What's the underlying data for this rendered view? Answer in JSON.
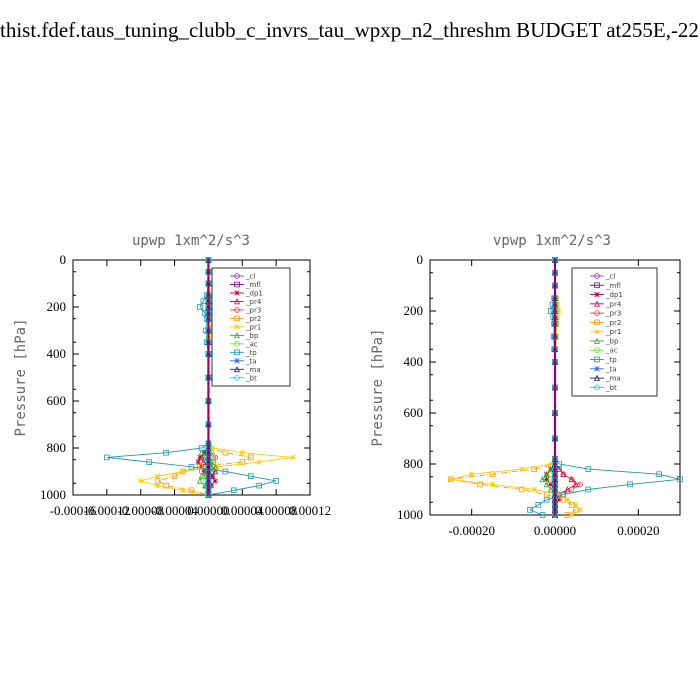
{
  "page": {
    "title": "thist.fdef.taus_tuning_clubb_c_invrs_tau_wpxp_n2_threshm  BUDGET at255E,-22"
  },
  "legend_entries": [
    {
      "name": "_cl",
      "color": "#9933cc"
    },
    {
      "name": "_mfl",
      "color": "#800080"
    },
    {
      "name": "_dp1",
      "color": "#b8003a"
    },
    {
      "name": "_pr4",
      "color": "#cc0044"
    },
    {
      "name": "_pr3",
      "color": "#ff3333"
    },
    {
      "name": "_pr2",
      "color": "#ff9900"
    },
    {
      "name": "_pr1",
      "color": "#ffcc00"
    },
    {
      "name": "_bp",
      "color": "#33aa33"
    },
    {
      "name": "_ac",
      "color": "#66ee22"
    },
    {
      "name": "_tp",
      "color": "#2299aa"
    },
    {
      "name": "_ta",
      "color": "#3366dd"
    },
    {
      "name": "_ma",
      "color": "#222266"
    },
    {
      "name": "_bt",
      "color": "#00dddd"
    }
  ],
  "chart_data": [
    {
      "type": "line",
      "title": "upwp   1xm^2/s^3",
      "ylabel": "Pressure [hPa]",
      "xlabel": "",
      "xlim": [
        -0.00016,
        0.00012
      ],
      "ylim": [
        1000,
        0
      ],
      "xticks": [
        "-0.00016",
        "-0.00012",
        "-0.00008",
        "-0.00004",
        "0.00000",
        "0.00004",
        "0.00008",
        "0.00012"
      ],
      "yticks": [
        "0",
        "200",
        "400",
        "600",
        "800",
        "1000"
      ],
      "legend_position": "top-right",
      "pressure_levels": [
        0,
        50,
        100,
        150,
        175,
        200,
        225,
        250,
        300,
        350,
        400,
        500,
        600,
        700,
        780,
        800,
        820,
        840,
        860,
        880,
        900,
        920,
        940,
        960,
        980,
        1000
      ],
      "series": [
        {
          "name": "_cl",
          "values": [
            0,
            0,
            0,
            0,
            0,
            0,
            0,
            0,
            0,
            0,
            0,
            0,
            0,
            0,
            0,
            0,
            0,
            0,
            0,
            0,
            0,
            0,
            0,
            0,
            0,
            0
          ]
        },
        {
          "name": "_mfl",
          "values": [
            0,
            0,
            0,
            0,
            0,
            0,
            0,
            0,
            0,
            0,
            0,
            0,
            0,
            0,
            0,
            0,
            0,
            0,
            0,
            0,
            0,
            0,
            0,
            0,
            0,
            0
          ]
        },
        {
          "name": "_dp1",
          "values": [
            0,
            0,
            0,
            0,
            0,
            0,
            0,
            0,
            0,
            0,
            0,
            0,
            0,
            0,
            0,
            0,
            -5e-06,
            -1e-05,
            -1.2e-05,
            -8e-06,
            -5e-06,
            5e-06,
            8e-06,
            3e-06,
            0,
            0
          ]
        },
        {
          "name": "_pr4",
          "values": [
            0,
            0,
            0,
            0,
            0,
            0,
            0,
            0,
            0,
            0,
            0,
            0,
            0,
            0,
            0,
            0,
            -4e-06,
            -8e-06,
            -6e-06,
            4e-06,
            8e-06,
            4e-06,
            0,
            -3e-06,
            0,
            0
          ]
        },
        {
          "name": "_pr3",
          "values": [
            0,
            0,
            0,
            0,
            0,
            0,
            0,
            0,
            0,
            0,
            0,
            0,
            0,
            0,
            0,
            0,
            4e-06,
            8e-06,
            6e-06,
            -4e-06,
            -8e-06,
            -4e-06,
            0,
            3e-06,
            0,
            0
          ]
        },
        {
          "name": "_pr2",
          "values": [
            0,
            0,
            0,
            2e-06,
            4e-06,
            6e-06,
            4e-06,
            3e-06,
            2e-06,
            1e-06,
            0,
            0,
            0,
            0,
            0,
            0,
            2e-05,
            5e-05,
            4e-05,
            -1e-05,
            -3e-05,
            -4e-05,
            -6e-05,
            -5e-05,
            -2e-05,
            0
          ]
        },
        {
          "name": "_pr1",
          "values": [
            0,
            0,
            0,
            3e-06,
            5e-06,
            8e-06,
            5e-06,
            4e-06,
            3e-06,
            2e-06,
            0,
            0,
            0,
            0,
            0,
            5e-06,
            4e-05,
            0.0001,
            6e-05,
            1e-05,
            -3e-05,
            -6e-05,
            -8e-05,
            -6e-05,
            -3e-05,
            0
          ]
        },
        {
          "name": "_bp",
          "values": [
            0,
            0,
            0,
            0,
            0,
            0,
            0,
            0,
            0,
            0,
            0,
            0,
            0,
            0,
            0,
            0,
            -8e-06,
            -6e-06,
            3e-06,
            8e-06,
            4e-06,
            -8e-06,
            -1e-05,
            -4e-06,
            0,
            0
          ]
        },
        {
          "name": "_ac",
          "values": [
            0,
            0,
            0,
            0,
            0,
            0,
            0,
            0,
            0,
            0,
            0,
            0,
            0,
            0,
            0,
            0,
            4e-06,
            6e-06,
            4e-06,
            2e-06,
            0,
            -4e-06,
            -6e-06,
            -2e-06,
            0,
            0
          ]
        },
        {
          "name": "_tp",
          "values": [
            0,
            0,
            0,
            -2e-06,
            -6e-06,
            -1e-05,
            -4e-06,
            -2e-06,
            -3e-06,
            -2e-06,
            0,
            0,
            0,
            0,
            0,
            -8e-06,
            -5e-05,
            -0.00012,
            -7e-05,
            -2e-05,
            2e-05,
            5e-05,
            8e-05,
            6e-05,
            3e-05,
            0
          ]
        },
        {
          "name": "_ta",
          "values": [
            0,
            0,
            0,
            0,
            0,
            0,
            0,
            0,
            0,
            0,
            0,
            0,
            0,
            0,
            0,
            0,
            0,
            0,
            0,
            0,
            0,
            0,
            0,
            0,
            0,
            0
          ]
        },
        {
          "name": "_ma",
          "values": [
            0,
            0,
            0,
            0,
            0,
            0,
            0,
            0,
            0,
            0,
            0,
            0,
            0,
            0,
            0,
            0,
            0,
            0,
            0,
            0,
            0,
            0,
            0,
            0,
            0,
            0
          ]
        },
        {
          "name": "_bt",
          "values": [
            0,
            0,
            0,
            0,
            0,
            0,
            0,
            0,
            0,
            0,
            0,
            0,
            0,
            0,
            0,
            0,
            0,
            0,
            0,
            0,
            0,
            0,
            0,
            0,
            0,
            0
          ]
        }
      ]
    },
    {
      "type": "line",
      "title": "vpwp   1xm^2/s^3",
      "ylabel": "Pressure [hPa]",
      "xlabel": "",
      "xlim": [
        -0.0003,
        0.0003
      ],
      "ylim": [
        1000,
        0
      ],
      "xticks": [
        "-0.00020",
        "0.00000",
        "0.00020"
      ],
      "xtick_values": [
        -0.0002,
        0,
        0.0002
      ],
      "yticks": [
        "0",
        "200",
        "400",
        "600",
        "800",
        "1000"
      ],
      "legend_position": "top-right",
      "pressure_levels": [
        0,
        50,
        100,
        150,
        175,
        200,
        225,
        250,
        300,
        350,
        400,
        500,
        600,
        700,
        780,
        800,
        820,
        840,
        860,
        880,
        900,
        920,
        940,
        960,
        980,
        1000
      ],
      "series": [
        {
          "name": "_cl",
          "values": [
            0,
            0,
            0,
            0,
            0,
            0,
            0,
            0,
            0,
            0,
            0,
            0,
            0,
            0,
            0,
            0,
            0,
            0,
            0,
            0,
            0,
            0,
            0,
            0,
            0,
            0
          ]
        },
        {
          "name": "_mfl",
          "values": [
            0,
            0,
            0,
            0,
            0,
            0,
            0,
            0,
            0,
            0,
            0,
            0,
            0,
            0,
            0,
            0,
            0,
            0,
            0,
            0,
            0,
            0,
            0,
            0,
            0,
            0
          ]
        },
        {
          "name": "_dp1",
          "values": [
            0,
            0,
            0,
            0,
            0,
            0,
            0,
            0,
            0,
            0,
            0,
            0,
            0,
            0,
            0,
            0,
            -1e-05,
            -2e-05,
            -2e-05,
            -1e-05,
            0,
            1e-05,
            1e-05,
            0,
            0,
            0
          ]
        },
        {
          "name": "_pr4",
          "values": [
            0,
            0,
            0,
            0,
            0,
            0,
            0,
            0,
            0,
            0,
            0,
            0,
            0,
            0,
            0,
            0,
            1e-05,
            2e-05,
            4e-05,
            5e-05,
            3e-05,
            1e-05,
            0,
            0,
            0,
            0
          ]
        },
        {
          "name": "_pr3",
          "values": [
            0,
            0,
            0,
            0,
            0,
            0,
            0,
            0,
            0,
            0,
            0,
            0,
            0,
            0,
            0,
            0,
            1e-05,
            2e-05,
            4e-05,
            6e-05,
            4e-05,
            2e-05,
            0,
            0,
            0,
            0
          ]
        },
        {
          "name": "_pr2",
          "values": [
            0,
            0,
            0,
            2e-06,
            4e-06,
            6e-06,
            4e-06,
            3e-06,
            2e-06,
            1e-06,
            0,
            0,
            0,
            0,
            0,
            0,
            -5e-05,
            -0.00015,
            -0.00025,
            -0.00018,
            -8e-05,
            -2e-05,
            2e-05,
            4e-05,
            5e-05,
            3e-05
          ]
        },
        {
          "name": "_pr1",
          "values": [
            0,
            0,
            0,
            3e-06,
            5e-06,
            8e-06,
            5e-06,
            4e-06,
            3e-06,
            2e-06,
            0,
            0,
            0,
            0,
            0,
            -1e-05,
            -8e-05,
            -0.0002,
            -0.00025,
            -0.00015,
            -5e-05,
            1e-05,
            3e-05,
            5e-05,
            6e-05,
            4e-05
          ]
        },
        {
          "name": "_bp",
          "values": [
            0,
            0,
            0,
            0,
            0,
            0,
            0,
            0,
            0,
            0,
            0,
            0,
            0,
            0,
            0,
            0,
            -1e-05,
            -2e-05,
            -3e-05,
            -2e-05,
            -1e-05,
            0,
            0,
            0,
            0,
            0
          ]
        },
        {
          "name": "_ac",
          "values": [
            0,
            0,
            0,
            0,
            0,
            0,
            0,
            0,
            0,
            0,
            0,
            0,
            0,
            0,
            0,
            0,
            0,
            -1e-05,
            -1e-05,
            0,
            0,
            0,
            0,
            0,
            0,
            0
          ]
        },
        {
          "name": "_tp",
          "values": [
            0,
            0,
            0,
            -2e-06,
            -6e-06,
            -1e-05,
            -4e-06,
            -2e-06,
            -3e-06,
            -2e-06,
            0,
            0,
            0,
            0,
            0,
            1e-05,
            8e-05,
            0.00025,
            0.0003,
            0.00018,
            8e-05,
            2e-05,
            -2e-05,
            -4e-05,
            -6e-05,
            -3e-05
          ]
        },
        {
          "name": "_ta",
          "values": [
            0,
            0,
            0,
            0,
            0,
            0,
            0,
            0,
            0,
            0,
            0,
            0,
            0,
            0,
            0,
            0,
            0,
            0,
            0,
            0,
            0,
            0,
            0,
            0,
            0,
            0
          ]
        },
        {
          "name": "_ma",
          "values": [
            0,
            0,
            0,
            0,
            0,
            0,
            0,
            0,
            0,
            0,
            0,
            0,
            0,
            0,
            0,
            0,
            0,
            0,
            0,
            0,
            0,
            0,
            0,
            0,
            0,
            0
          ]
        },
        {
          "name": "_bt",
          "values": [
            0,
            0,
            0,
            0,
            0,
            0,
            0,
            0,
            0,
            0,
            0,
            0,
            0,
            0,
            0,
            0,
            0,
            0,
            0,
            0,
            0,
            0,
            0,
            0,
            0,
            0
          ]
        }
      ]
    }
  ]
}
